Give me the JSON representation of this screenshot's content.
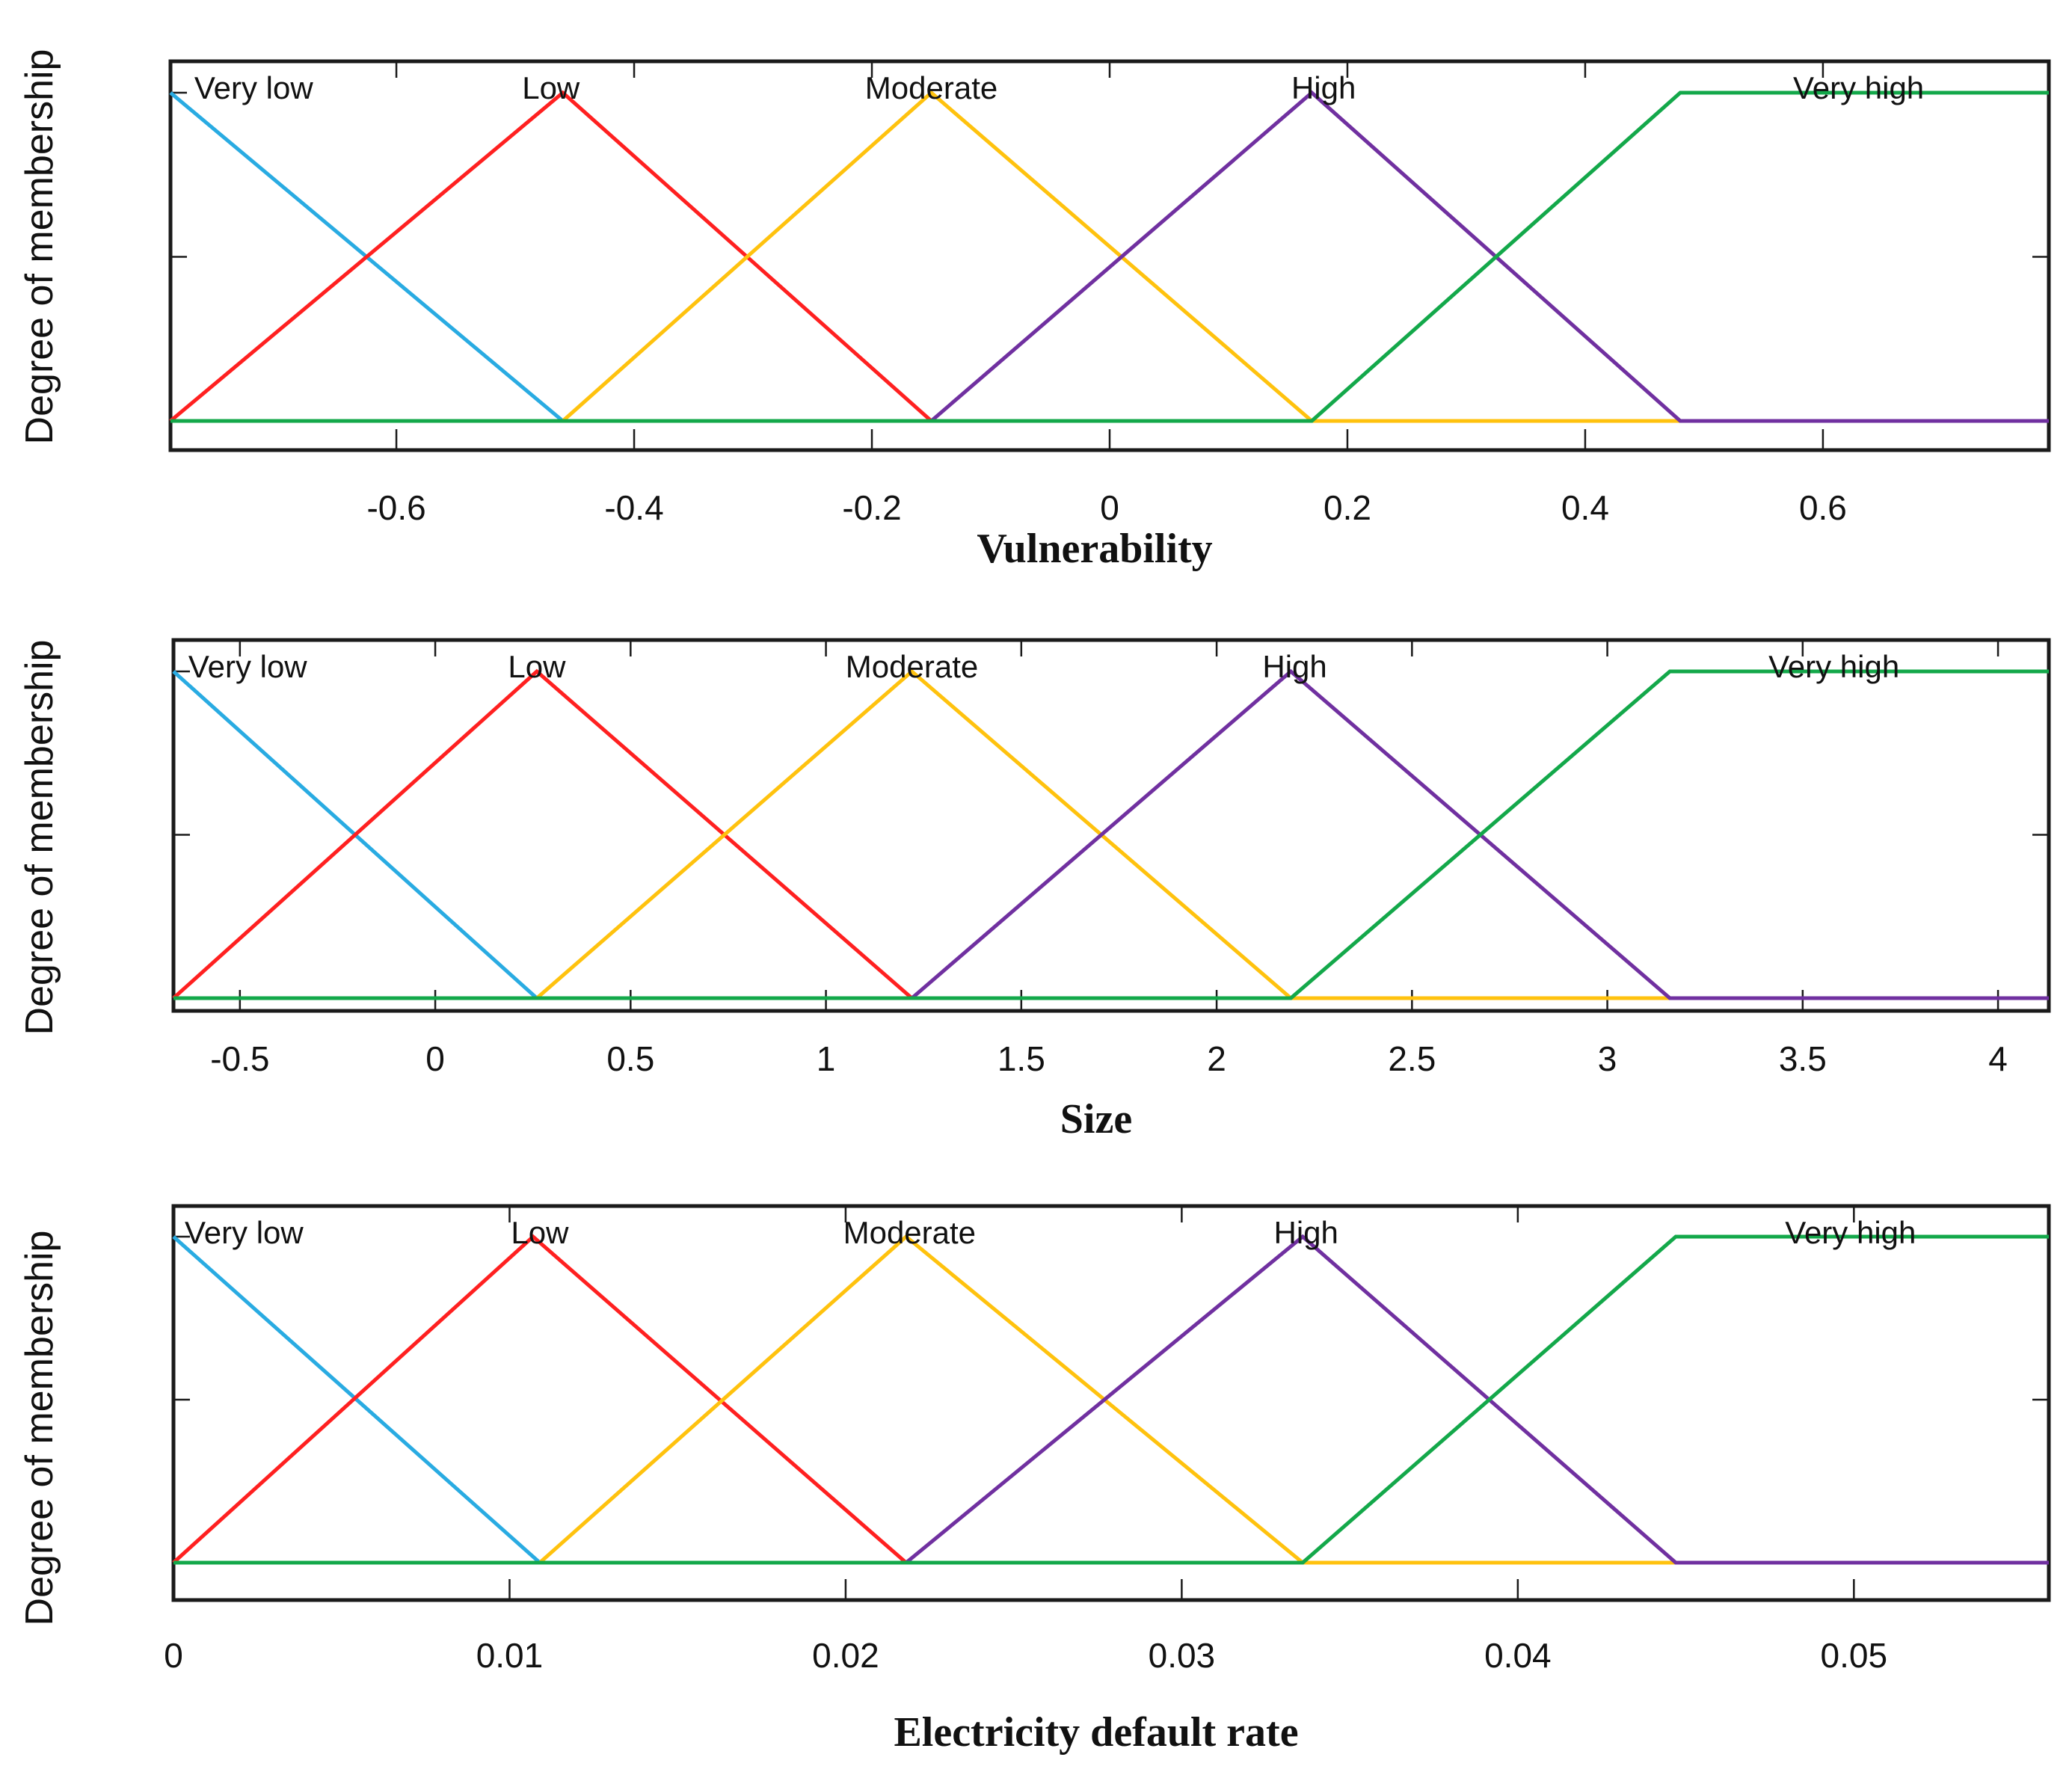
{
  "colors": {
    "very_low": "#29abe2",
    "low": "#ff2020",
    "moderate": "#ffc20e",
    "high": "#7030a0",
    "very_high": "#13a84a",
    "baseline": "#8cc751"
  },
  "chart_data": [
    {
      "type": "line",
      "title": "",
      "xlabel": "Vulnerability",
      "ylabel": "Degree of membership",
      "xlim": [
        -0.79,
        0.79
      ],
      "ylim": [
        0,
        1
      ],
      "xticks": [
        -0.6,
        -0.4,
        -0.2,
        0,
        0.2,
        0.4,
        0.6
      ],
      "xtick_labels": [
        "-0.6",
        "-0.4",
        "-0.2",
        "0",
        "0.2",
        "0.4",
        "0.6"
      ],
      "series": [
        {
          "name": "Very low",
          "color_key": "very_low",
          "points": [
            [
              -0.79,
              1
            ],
            [
              -0.46,
              0
            ],
            [
              0.79,
              0
            ]
          ]
        },
        {
          "name": "Low",
          "color_key": "low",
          "points": [
            [
              -0.79,
              0
            ],
            [
              -0.46,
              1
            ],
            [
              -0.15,
              0
            ],
            [
              0.79,
              0
            ]
          ]
        },
        {
          "name": "Moderate",
          "color_key": "moderate",
          "points": [
            [
              -0.79,
              0
            ],
            [
              -0.46,
              0
            ],
            [
              -0.15,
              1
            ],
            [
              0.17,
              0
            ],
            [
              0.79,
              0
            ]
          ]
        },
        {
          "name": "High",
          "color_key": "high",
          "points": [
            [
              -0.79,
              0
            ],
            [
              -0.15,
              0
            ],
            [
              0.17,
              1
            ],
            [
              0.48,
              0
            ],
            [
              0.79,
              0
            ]
          ]
        },
        {
          "name": "Very high",
          "color_key": "very_high",
          "points": [
            [
              -0.79,
              0
            ],
            [
              0.17,
              0
            ],
            [
              0.48,
              1
            ],
            [
              0.79,
              1
            ]
          ]
        }
      ],
      "term_labels": [
        {
          "text": "Very low",
          "x": -0.72
        },
        {
          "text": "Low",
          "x": -0.47
        },
        {
          "text": "Moderate",
          "x": -0.15
        },
        {
          "text": "High",
          "x": 0.18
        },
        {
          "text": "Very high",
          "x": 0.63
        }
      ]
    },
    {
      "type": "line",
      "title": "",
      "xlabel": "Size",
      "ylabel": "Degree of membership",
      "xlim": [
        -0.67,
        4.13
      ],
      "ylim": [
        0,
        1
      ],
      "xticks": [
        -0.5,
        0,
        0.5,
        1,
        1.5,
        2,
        2.5,
        3,
        3.5,
        4
      ],
      "xtick_labels": [
        "-0.5",
        "0",
        "0.5",
        "1",
        "1.5",
        "2",
        "2.5",
        "3",
        "3.5",
        "4"
      ],
      "series": [
        {
          "name": "Very low",
          "color_key": "very_low",
          "points": [
            [
              -0.67,
              1
            ],
            [
              0.26,
              0
            ],
            [
              4.13,
              0
            ]
          ]
        },
        {
          "name": "Low",
          "color_key": "low",
          "points": [
            [
              -0.67,
              0
            ],
            [
              0.26,
              1
            ],
            [
              1.22,
              0
            ],
            [
              4.13,
              0
            ]
          ]
        },
        {
          "name": "Moderate",
          "color_key": "moderate",
          "points": [
            [
              -0.67,
              0
            ],
            [
              0.26,
              0
            ],
            [
              1.22,
              1
            ],
            [
              2.19,
              0
            ],
            [
              4.13,
              0
            ]
          ]
        },
        {
          "name": "High",
          "color_key": "high",
          "points": [
            [
              -0.67,
              0
            ],
            [
              1.22,
              0
            ],
            [
              2.19,
              1
            ],
            [
              3.16,
              0
            ],
            [
              4.13,
              0
            ]
          ]
        },
        {
          "name": "Very high",
          "color_key": "very_high",
          "points": [
            [
              -0.67,
              0
            ],
            [
              2.19,
              0
            ],
            [
              3.16,
              1
            ],
            [
              4.13,
              1
            ]
          ]
        }
      ],
      "term_labels": [
        {
          "text": "Very low",
          "x": -0.48
        },
        {
          "text": "Low",
          "x": 0.26
        },
        {
          "text": "Moderate",
          "x": 1.22
        },
        {
          "text": "High",
          "x": 2.2
        },
        {
          "text": "Very high",
          "x": 3.58
        }
      ]
    },
    {
      "type": "line",
      "title": "",
      "xlabel": "Electricity default rate",
      "ylabel": "Degree of membership",
      "xlim": [
        0,
        0.0558
      ],
      "ylim": [
        0,
        1
      ],
      "xticks": [
        0,
        0.01,
        0.02,
        0.03,
        0.04,
        0.05
      ],
      "xtick_labels": [
        "0",
        "0.01",
        "0.02",
        "0.03",
        "0.04",
        "0.05"
      ],
      "series": [
        {
          "name": "Very low",
          "color_key": "very_low",
          "points": [
            [
              0,
              1
            ],
            [
              0.0109,
              0
            ],
            [
              0.0558,
              0
            ]
          ]
        },
        {
          "name": "Low",
          "color_key": "low",
          "points": [
            [
              0,
              0
            ],
            [
              0.0107,
              1
            ],
            [
              0.0218,
              0
            ],
            [
              0.0558,
              0
            ]
          ]
        },
        {
          "name": "Moderate",
          "color_key": "moderate",
          "points": [
            [
              0,
              0
            ],
            [
              0.0109,
              0
            ],
            [
              0.0218,
              1
            ],
            [
              0.0336,
              0
            ],
            [
              0.0558,
              0
            ]
          ]
        },
        {
          "name": "High",
          "color_key": "high",
          "points": [
            [
              0,
              0
            ],
            [
              0.0218,
              0
            ],
            [
              0.0336,
              1
            ],
            [
              0.0447,
              0
            ],
            [
              0.0558,
              0
            ]
          ]
        },
        {
          "name": "Very high",
          "color_key": "very_high",
          "points": [
            [
              0,
              0
            ],
            [
              0.0336,
              0
            ],
            [
              0.0447,
              1
            ],
            [
              0.0558,
              1
            ]
          ]
        }
      ],
      "term_labels": [
        {
          "text": "Very low",
          "x": 0.0021
        },
        {
          "text": "Low",
          "x": 0.0109
        },
        {
          "text": "Moderate",
          "x": 0.0219
        },
        {
          "text": "High",
          "x": 0.0337
        },
        {
          "text": "Very high",
          "x": 0.0499
        }
      ]
    }
  ]
}
